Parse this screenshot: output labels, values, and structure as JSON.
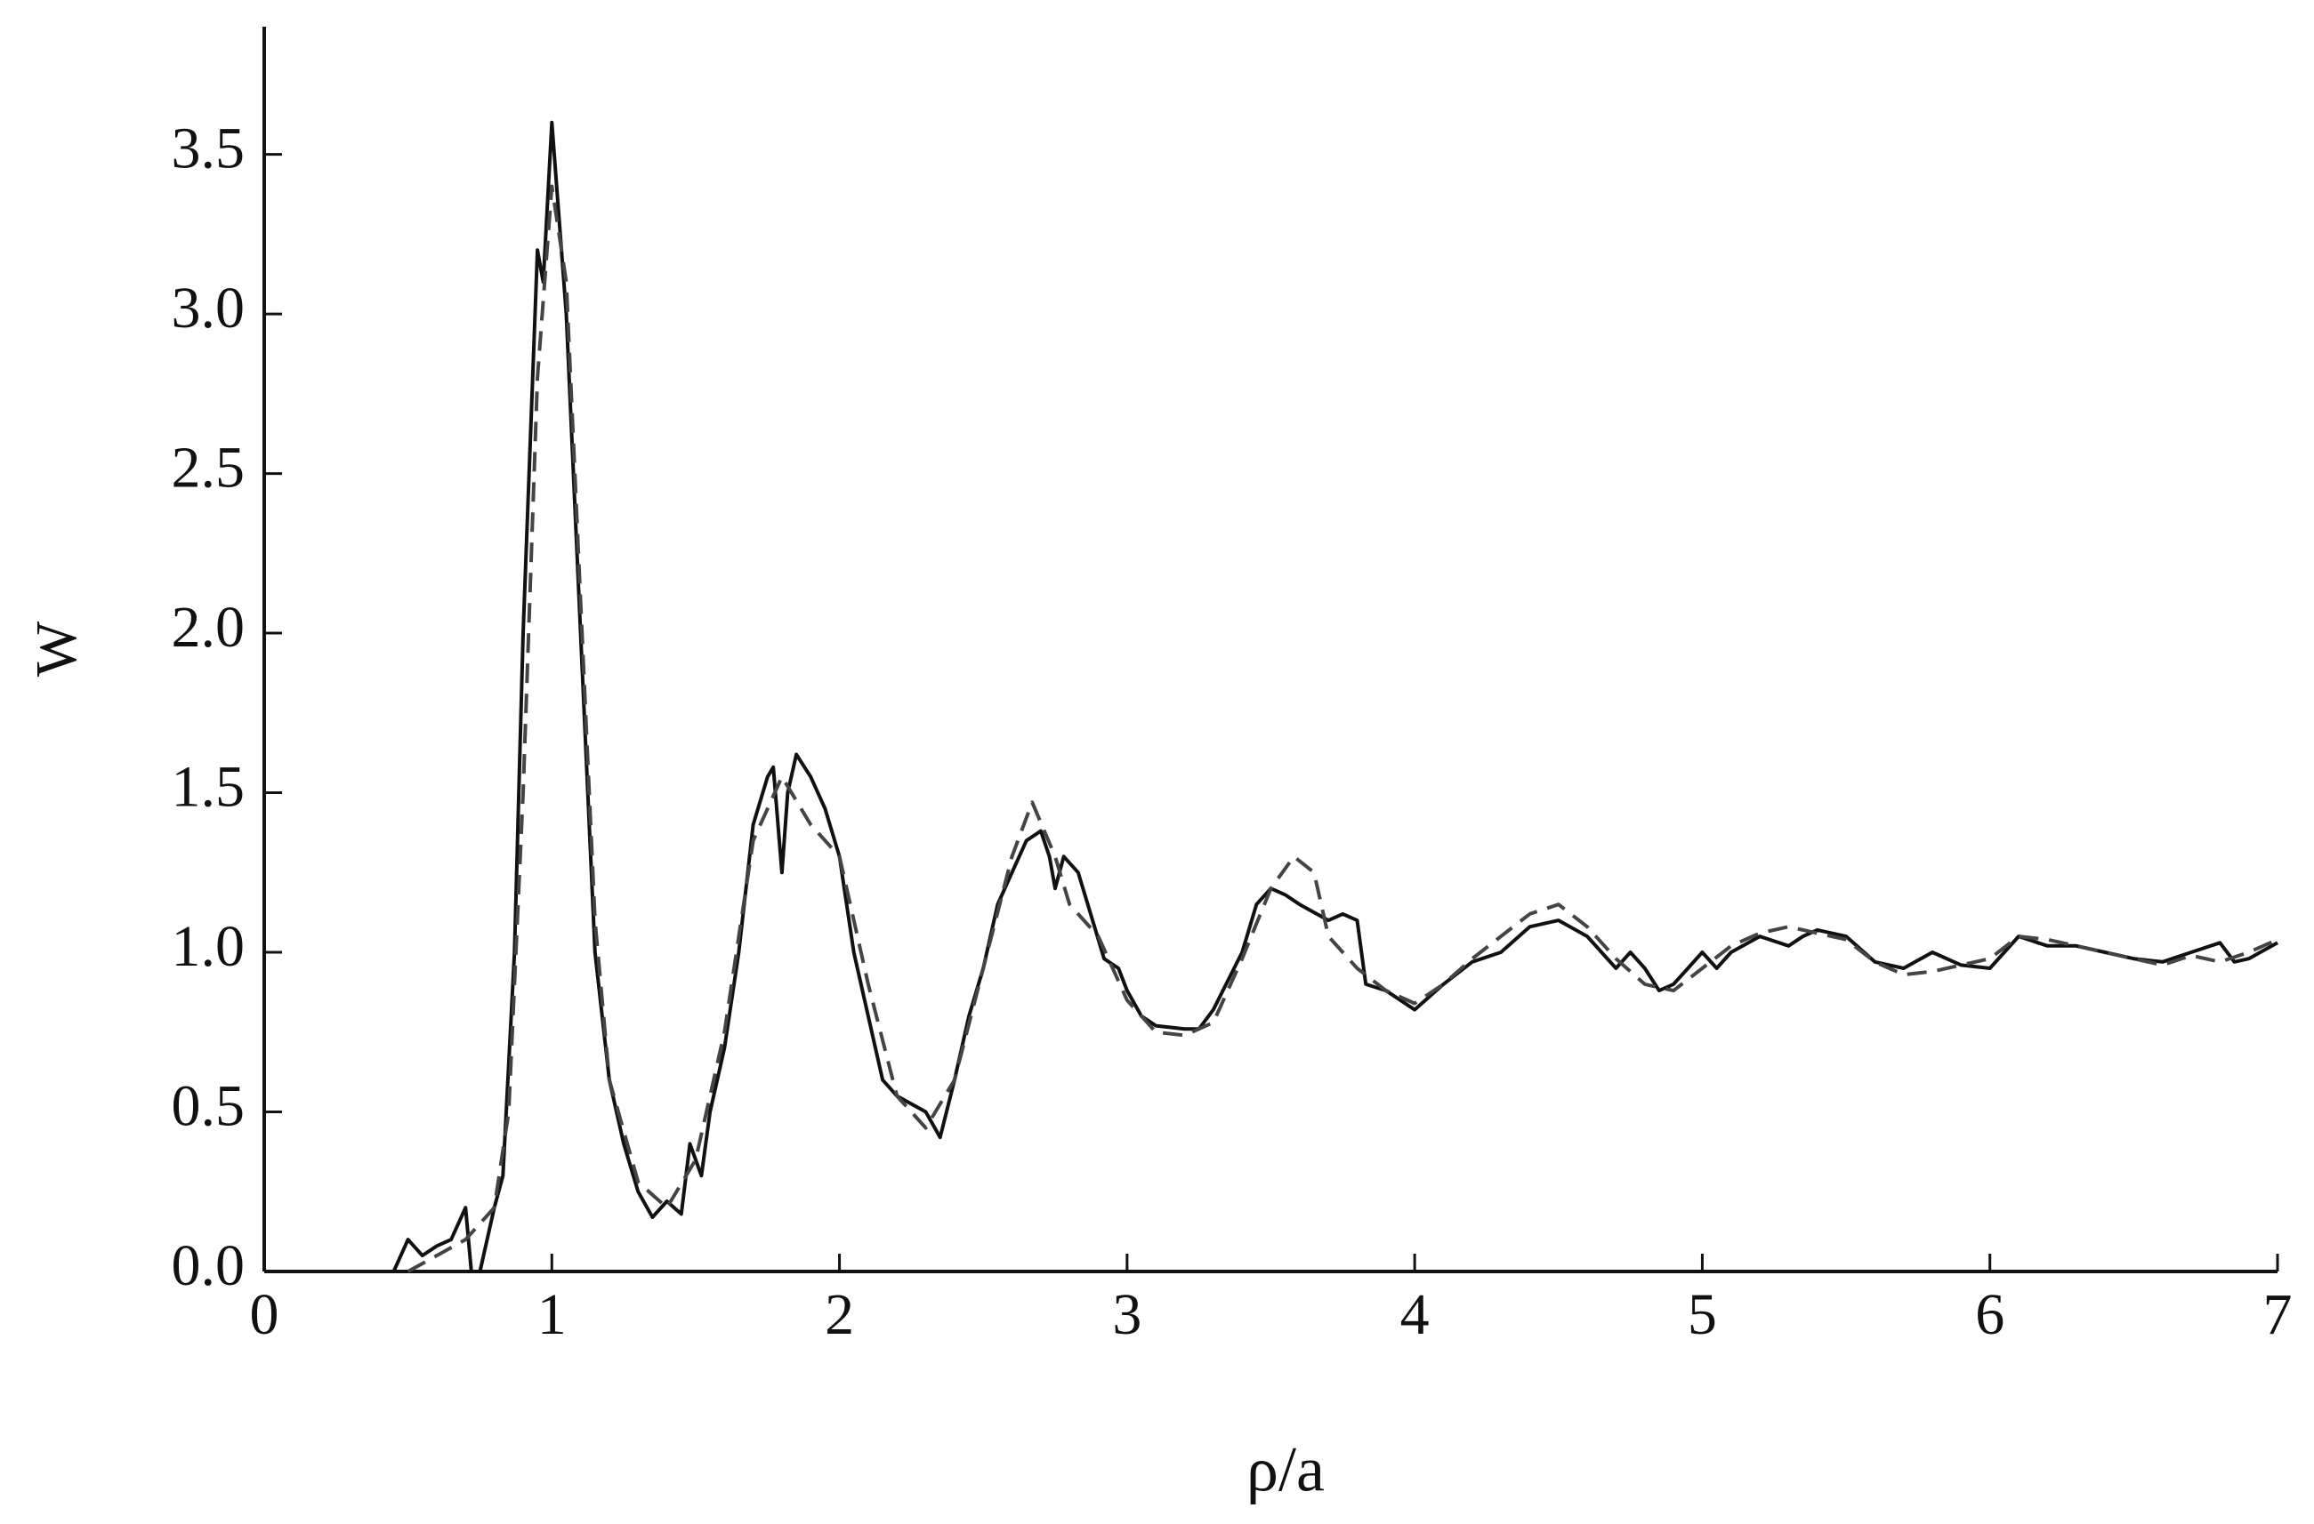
{
  "chart_data": {
    "type": "line",
    "x_label": "ρ/a",
    "y_label": "W",
    "xlim": [
      0,
      7
    ],
    "ylim": [
      0,
      3.9
    ],
    "xticks": [
      0,
      1,
      2,
      3,
      4,
      5,
      6,
      7
    ],
    "yticks": [
      {
        "value": 0,
        "label": "0.0"
      },
      {
        "value": 0.5,
        "label": "0.5"
      },
      {
        "value": 1,
        "label": "1.0"
      },
      {
        "value": 1.5,
        "label": "1.5"
      },
      {
        "value": 2,
        "label": "2.0"
      },
      {
        "value": 2.5,
        "label": "2.5"
      },
      {
        "value": 3,
        "label": "3.0"
      },
      {
        "value": 3.5,
        "label": "3.5"
      }
    ],
    "series": [
      {
        "color": "#111111",
        "line_style": "solid",
        "x": [
          0.45,
          0.5,
          0.55,
          0.6,
          0.65,
          0.7,
          0.72,
          0.75,
          0.8,
          0.83,
          0.87,
          0.9,
          0.95,
          0.97,
          1.0,
          1.05,
          1.1,
          1.15,
          1.2,
          1.25,
          1.3,
          1.35,
          1.4,
          1.45,
          1.48,
          1.52,
          1.55,
          1.6,
          1.65,
          1.7,
          1.75,
          1.77,
          1.8,
          1.82,
          1.85,
          1.9,
          1.95,
          2.0,
          2.05,
          2.1,
          2.15,
          2.2,
          2.3,
          2.35,
          2.4,
          2.45,
          2.5,
          2.55,
          2.6,
          2.65,
          2.7,
          2.73,
          2.75,
          2.78,
          2.83,
          2.88,
          2.92,
          2.97,
          3.0,
          3.05,
          3.1,
          3.2,
          3.25,
          3.3,
          3.4,
          3.45,
          3.5,
          3.55,
          3.6,
          3.7,
          3.75,
          3.8,
          3.83,
          3.9,
          4.0,
          4.1,
          4.2,
          4.3,
          4.4,
          4.5,
          4.6,
          4.7,
          4.75,
          4.8,
          4.85,
          4.9,
          4.95,
          5.0,
          5.05,
          5.1,
          5.2,
          5.3,
          5.35,
          5.4,
          5.5,
          5.6,
          5.7,
          5.8,
          5.9,
          6.0,
          6.1,
          6.2,
          6.3,
          6.4,
          6.5,
          6.6,
          6.7,
          6.8,
          6.85,
          6.9,
          7.0
        ],
        "values": [
          0,
          0.1,
          0.05,
          0.08,
          0.1,
          0.2,
          0,
          0,
          0.2,
          0.3,
          1.0,
          2.0,
          3.2,
          3.1,
          3.6,
          3.0,
          2.0,
          1.0,
          0.6,
          0.4,
          0.25,
          0.17,
          0.22,
          0.18,
          0.4,
          0.3,
          0.5,
          0.7,
          1.0,
          1.4,
          1.55,
          1.58,
          1.25,
          1.5,
          1.62,
          1.55,
          1.45,
          1.3,
          1.0,
          0.8,
          0.6,
          0.55,
          0.5,
          0.42,
          0.6,
          0.8,
          0.95,
          1.15,
          1.25,
          1.35,
          1.38,
          1.3,
          1.2,
          1.3,
          1.25,
          1.1,
          0.98,
          0.95,
          0.88,
          0.8,
          0.77,
          0.76,
          0.76,
          0.82,
          1.0,
          1.15,
          1.2,
          1.18,
          1.15,
          1.1,
          1.12,
          1.1,
          0.9,
          0.88,
          0.82,
          0.9,
          0.97,
          1.0,
          1.08,
          1.1,
          1.05,
          0.95,
          1.0,
          0.95,
          0.88,
          0.9,
          0.95,
          1.0,
          0.95,
          1.0,
          1.05,
          1.02,
          1.05,
          1.07,
          1.05,
          0.97,
          0.95,
          1.0,
          0.96,
          0.95,
          1.05,
          1.02,
          1.02,
          1.0,
          0.98,
          0.97,
          1.0,
          1.03,
          0.97,
          0.98,
          1.03
        ]
      },
      {
        "color": "#444444",
        "line_style": "dashed",
        "x": [
          0.5,
          0.6,
          0.7,
          0.8,
          0.85,
          0.9,
          0.95,
          1.0,
          1.05,
          1.1,
          1.15,
          1.2,
          1.3,
          1.4,
          1.5,
          1.6,
          1.7,
          1.8,
          1.9,
          2.0,
          2.1,
          2.2,
          2.3,
          2.4,
          2.5,
          2.6,
          2.67,
          2.75,
          2.8,
          2.9,
          3.0,
          3.1,
          3.2,
          3.3,
          3.4,
          3.5,
          3.58,
          3.65,
          3.7,
          3.8,
          3.9,
          4.0,
          4.1,
          4.2,
          4.3,
          4.4,
          4.5,
          4.6,
          4.7,
          4.8,
          4.9,
          5.0,
          5.1,
          5.2,
          5.3,
          5.4,
          5.5,
          5.6,
          5.7,
          5.8,
          5.9,
          6.0,
          6.1,
          6.2,
          6.3,
          6.4,
          6.5,
          6.6,
          6.7,
          6.8,
          6.9,
          7.0
        ],
        "values": [
          0,
          0.05,
          0.1,
          0.2,
          0.5,
          1.5,
          2.8,
          3.4,
          3.1,
          2.1,
          1.1,
          0.6,
          0.28,
          0.2,
          0.35,
          0.75,
          1.35,
          1.55,
          1.4,
          1.3,
          0.9,
          0.55,
          0.45,
          0.6,
          0.95,
          1.3,
          1.47,
          1.3,
          1.15,
          1.05,
          0.85,
          0.75,
          0.74,
          0.78,
          0.98,
          1.2,
          1.3,
          1.25,
          1.05,
          0.95,
          0.88,
          0.84,
          0.9,
          0.98,
          1.05,
          1.12,
          1.15,
          1.08,
          0.98,
          0.9,
          0.88,
          0.95,
          1.02,
          1.06,
          1.08,
          1.06,
          1.04,
          0.97,
          0.93,
          0.94,
          0.96,
          0.98,
          1.05,
          1.04,
          1.02,
          1.0,
          0.98,
          0.96,
          0.99,
          0.97,
          1.0,
          1.04
        ]
      }
    ]
  }
}
